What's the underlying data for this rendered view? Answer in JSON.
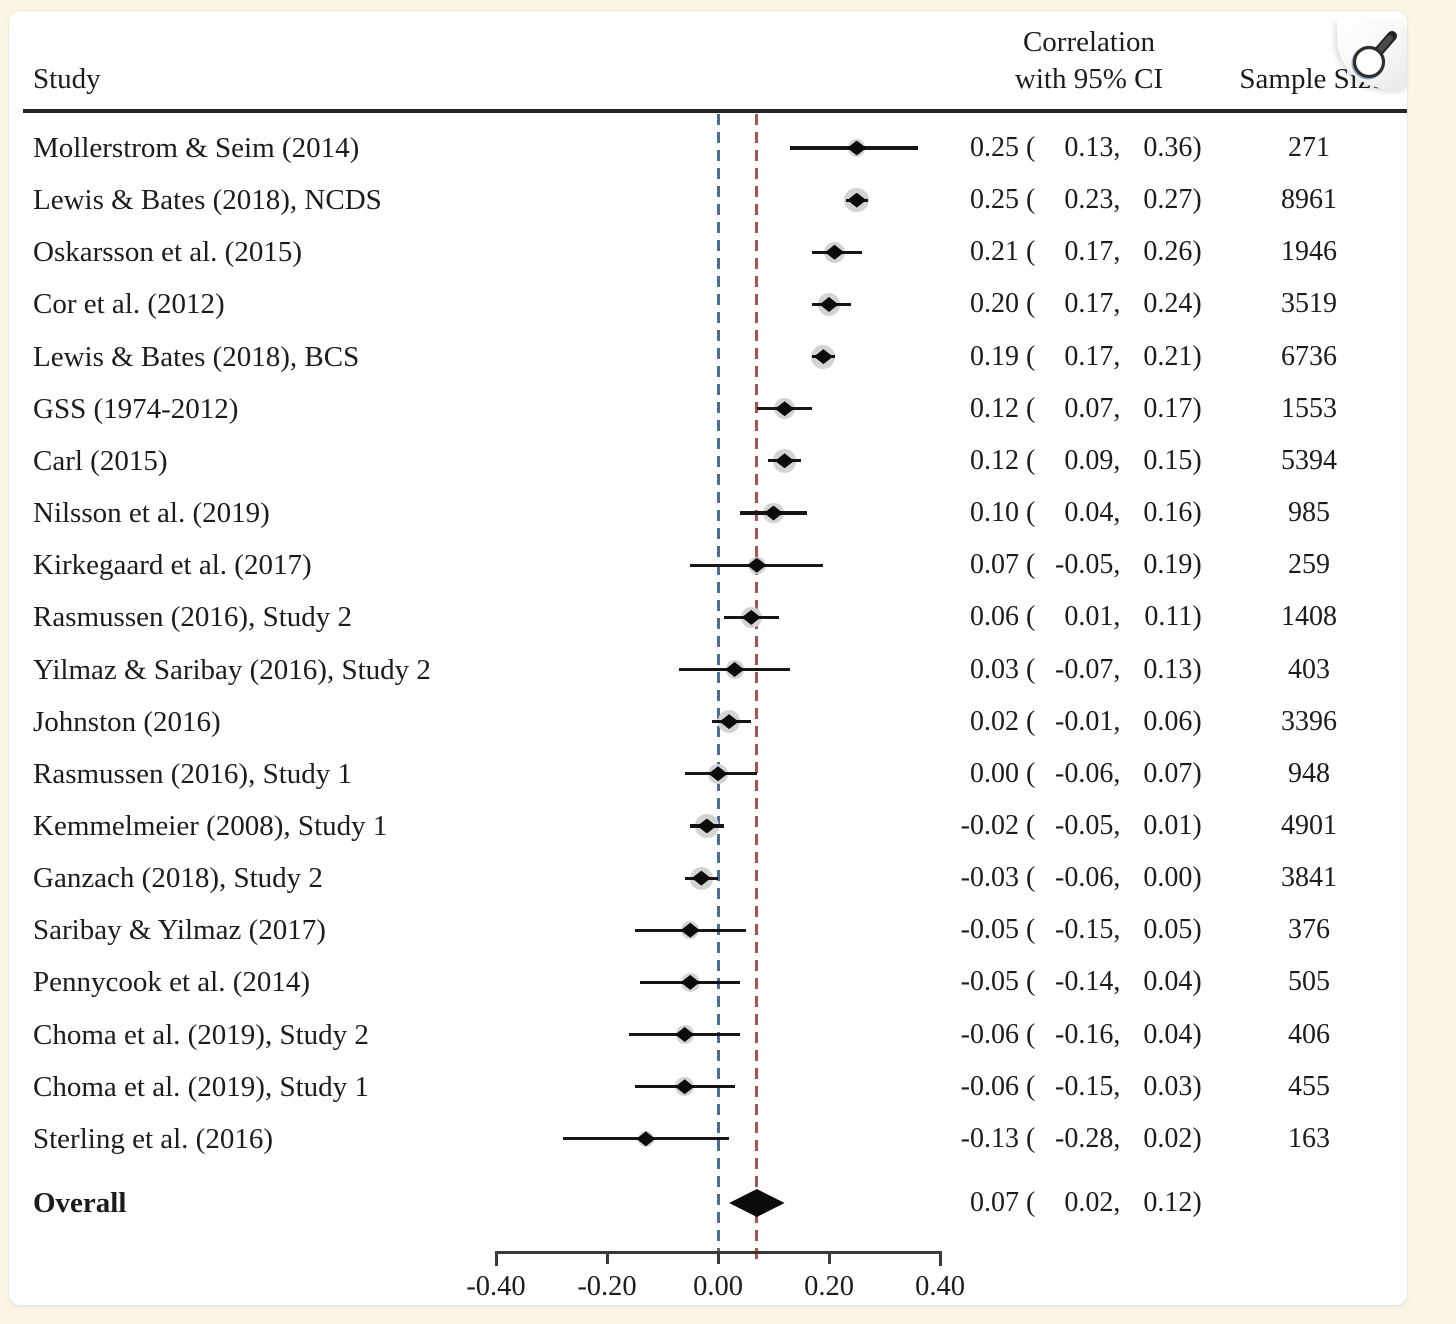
{
  "header": {
    "study": "Study",
    "correlation_line1": "Correlation",
    "correlation_line2": "with 95% CI",
    "sample_size": "Sample Size"
  },
  "zoom_button": {
    "icon": "magnifier-icon"
  },
  "colors": {
    "page_background": "#fbf6e3",
    "card_background": "#ffffff",
    "text": "#1c1c1c",
    "ci_line": "#161616",
    "marker": "#0b0b0b",
    "weight_circle": "#d3d3d3",
    "ref_line_zero": "#4a6c9b",
    "ref_line_overall": "#aa524e",
    "axis": "#3a3a3a"
  },
  "chart_data": {
    "type": "scatter",
    "variant": "forest-plot",
    "title": "",
    "xlabel": "",
    "xlim": [
      -0.45,
      0.45
    ],
    "legend": "none",
    "grid": "off",
    "reference_lines": [
      {
        "value": 0.0,
        "style": "dashed",
        "color": "#4a6c9b"
      },
      {
        "value": 0.07,
        "style": "dashed",
        "color": "#aa524e"
      }
    ],
    "axis_ticks": [
      "-0.40",
      "-0.20",
      "0.00",
      "0.20",
      "0.40"
    ],
    "studies": [
      {
        "name": "Mollerstrom & Seim (2014)",
        "est": "0.25",
        "lo": "0.13",
        "hi": "0.36",
        "n": "271"
      },
      {
        "name": "Lewis & Bates (2018), NCDS",
        "est": "0.25",
        "lo": "0.23",
        "hi": "0.27",
        "n": "8961"
      },
      {
        "name": "Oskarsson et al. (2015)",
        "est": "0.21",
        "lo": "0.17",
        "hi": "0.26",
        "n": "1946"
      },
      {
        "name": "Cor et al. (2012)",
        "est": "0.20",
        "lo": "0.17",
        "hi": "0.24",
        "n": "3519"
      },
      {
        "name": "Lewis & Bates (2018), BCS",
        "est": "0.19",
        "lo": "0.17",
        "hi": "0.21",
        "n": "6736"
      },
      {
        "name": "GSS (1974-2012)",
        "est": "0.12",
        "lo": "0.07",
        "hi": "0.17",
        "n": "1553"
      },
      {
        "name": "Carl (2015)",
        "est": "0.12",
        "lo": "0.09",
        "hi": "0.15",
        "n": "5394"
      },
      {
        "name": "Nilsson et al. (2019)",
        "est": "0.10",
        "lo": "0.04",
        "hi": "0.16",
        "n": "985"
      },
      {
        "name": "Kirkegaard et al. (2017)",
        "est": "0.07",
        "lo": "-0.05",
        "hi": "0.19",
        "n": "259"
      },
      {
        "name": "Rasmussen (2016), Study 2",
        "est": "0.06",
        "lo": "0.01",
        "hi": "0.11",
        "n": "1408"
      },
      {
        "name": "Yilmaz & Saribay (2016), Study 2",
        "est": "0.03",
        "lo": "-0.07",
        "hi": "0.13",
        "n": "403"
      },
      {
        "name": "Johnston (2016)",
        "est": "0.02",
        "lo": "-0.01",
        "hi": "0.06",
        "n": "3396"
      },
      {
        "name": "Rasmussen (2016), Study 1",
        "est": "0.00",
        "lo": "-0.06",
        "hi": "0.07",
        "n": "948"
      },
      {
        "name": "Kemmelmeier (2008), Study 1",
        "est": "-0.02",
        "lo": "-0.05",
        "hi": "0.01",
        "n": "4901"
      },
      {
        "name": "Ganzach (2018), Study 2",
        "est": "-0.03",
        "lo": "-0.06",
        "hi": "0.00",
        "n": "3841"
      },
      {
        "name": "Saribay & Yilmaz (2017)",
        "est": "-0.05",
        "lo": "-0.15",
        "hi": "0.05",
        "n": "376"
      },
      {
        "name": "Pennycook et al. (2014)",
        "est": "-0.05",
        "lo": "-0.14",
        "hi": "0.04",
        "n": "505"
      },
      {
        "name": "Choma et al. (2019), Study 2",
        "est": "-0.06",
        "lo": "-0.16",
        "hi": "0.04",
        "n": "406"
      },
      {
        "name": "Choma et al. (2019), Study 1",
        "est": "-0.06",
        "lo": "-0.15",
        "hi": "0.03",
        "n": "455"
      },
      {
        "name": "Sterling et al. (2016)",
        "est": "-0.13",
        "lo": "-0.28",
        "hi": "0.02",
        "n": "163"
      }
    ],
    "overall": {
      "name": "Overall",
      "est": "0.07",
      "lo": "0.02",
      "hi": "0.12"
    }
  }
}
